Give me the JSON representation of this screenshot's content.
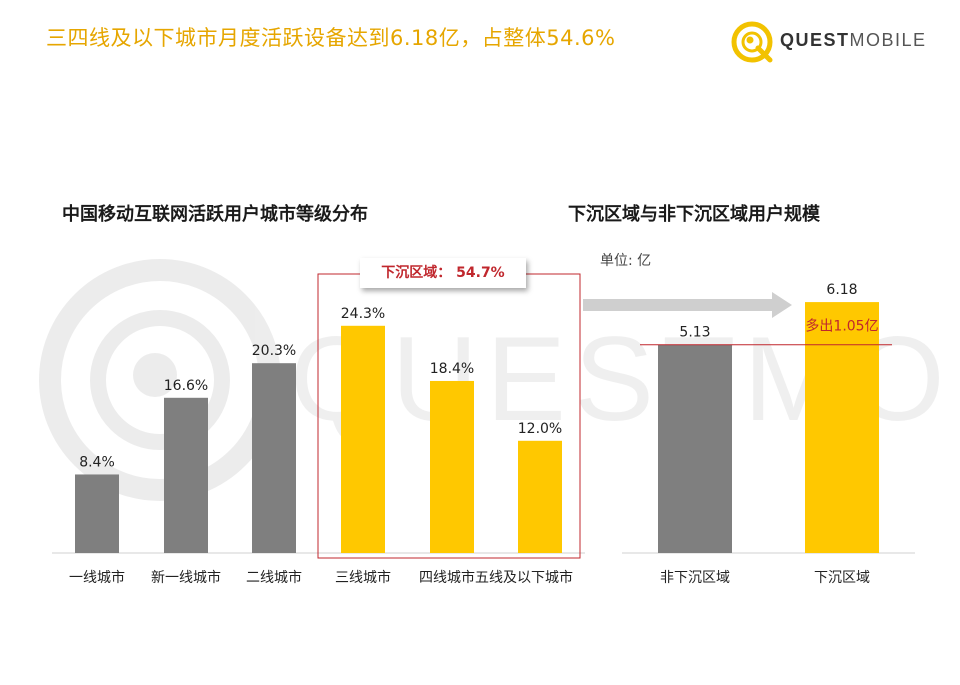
{
  "headline": "三四线及以下城市月度活跃设备达到6.18亿，占整体54.6%",
  "logo": {
    "text_bold": "QUEST",
    "text_light": "MOBILE",
    "icon": "questmobile-logo-icon"
  },
  "colors": {
    "gray": "#7F7F7F",
    "gold": "#FFC800",
    "red": "#C0272D",
    "headline": "#E6A600"
  },
  "left_chart": {
    "title": "中国移动互联网活跃用户城市等级分布",
    "callout": "下沉区域：  54.7%"
  },
  "right_chart": {
    "title": "下沉区域与非下沉区域用户规模",
    "unit": "单位: 亿",
    "annotation": "多出1.05亿"
  },
  "chart_data": [
    {
      "type": "bar",
      "title": "中国移动互联网活跃用户城市等级分布",
      "categories": [
        "一线城市",
        "新一线城市",
        "二线城市",
        "三线城市",
        "四线城市",
        "五线及以下城市"
      ],
      "values": [
        8.4,
        16.6,
        20.3,
        24.3,
        18.4,
        12.0
      ],
      "labels": [
        "8.4%",
        "16.6%",
        "20.3%",
        "24.3%",
        "18.4%",
        "12.0%"
      ],
      "colors": [
        "#7F7F7F",
        "#7F7F7F",
        "#7F7F7F",
        "#FFC800",
        "#FFC800",
        "#FFC800"
      ],
      "unit": "%",
      "highlight": {
        "label": "下沉区域",
        "value": 54.7,
        "categories": [
          "三线城市",
          "四线城市",
          "五线及以下城市"
        ]
      }
    },
    {
      "type": "bar",
      "title": "下沉区域与非下沉区域用户规模",
      "categories": [
        "非下沉区域",
        "下沉区域"
      ],
      "values": [
        5.13,
        6.18
      ],
      "labels": [
        "5.13",
        "6.18"
      ],
      "colors": [
        "#7F7F7F",
        "#FFC800"
      ],
      "unit": "亿",
      "difference": {
        "label": "多出1.05亿",
        "value": 1.05
      }
    }
  ]
}
